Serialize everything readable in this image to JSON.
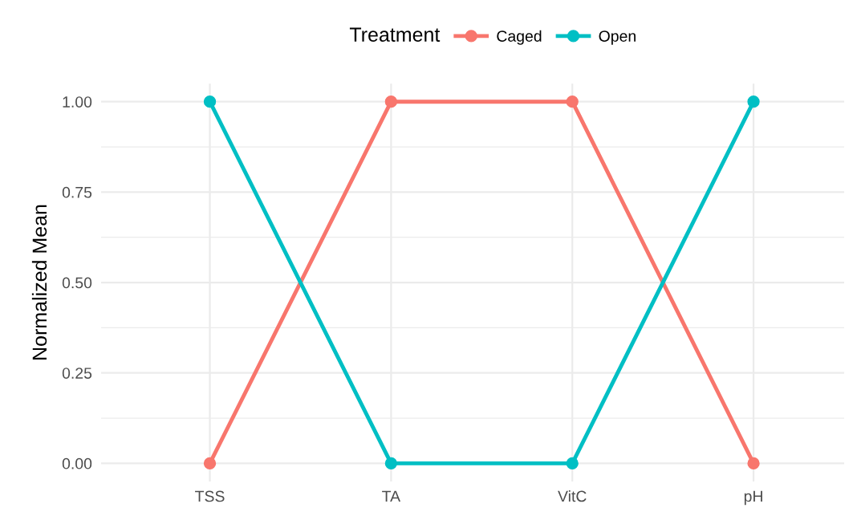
{
  "chart_data": {
    "type": "line",
    "ylabel": "Normalized Mean",
    "legend_title": "Treatment",
    "categories": [
      "TSS",
      "TA",
      "VitC",
      "pH"
    ],
    "series": [
      {
        "name": "Caged",
        "color": "#f8766d",
        "values": [
          0,
          1,
          1,
          0
        ]
      },
      {
        "name": "Open",
        "color": "#00bfc4",
        "values": [
          1,
          0,
          0,
          1
        ]
      }
    ],
    "ylim": [
      -0.05,
      1.05
    ],
    "yticks": [
      {
        "value": 0,
        "label": "0.00"
      },
      {
        "value": 0.125,
        "label": null
      },
      {
        "value": 0.25,
        "label": "0.25"
      },
      {
        "value": 0.375,
        "label": null
      },
      {
        "value": 0.5,
        "label": "0.50"
      },
      {
        "value": 0.625,
        "label": null
      },
      {
        "value": 0.75,
        "label": "0.75"
      },
      {
        "value": 0.875,
        "label": null
      },
      {
        "value": 1,
        "label": "1.00"
      }
    ],
    "grid": true,
    "legend": "top",
    "marker": "circle",
    "line_style": "solid"
  }
}
